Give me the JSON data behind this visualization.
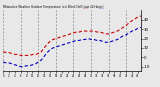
{
  "title": "Milwaukee Weather Outdoor Temperature (vs) Wind Chill (Last 24 Hours)",
  "bg_color": "#e8e8e8",
  "plot_bg": "#e8e8e8",
  "grid_color": "#888888",
  "red_color": "#cc0000",
  "blue_color": "#0000bb",
  "black_color": "#000000",
  "ylim": [
    -15,
    50
  ],
  "ytick_vals": [
    40,
    30,
    20,
    10,
    0,
    -10
  ],
  "ytick_labels": [
    "40",
    "30",
    "20",
    "10",
    "0",
    "-10"
  ],
  "n_points": 48,
  "temp": [
    6,
    5,
    5,
    4,
    3,
    3,
    2,
    2,
    2,
    2,
    3,
    3,
    4,
    6,
    10,
    14,
    17,
    19,
    20,
    21,
    22,
    23,
    24,
    25,
    26,
    27,
    27,
    28,
    28,
    28,
    28,
    28,
    27,
    27,
    26,
    25,
    25,
    26,
    27,
    28,
    30,
    32,
    34,
    37,
    39,
    41,
    43,
    44
  ],
  "windchill": [
    -5,
    -6,
    -6,
    -7,
    -8,
    -9,
    -10,
    -10,
    -9,
    -9,
    -8,
    -7,
    -5,
    -3,
    1,
    5,
    8,
    10,
    11,
    12,
    13,
    14,
    15,
    16,
    17,
    18,
    18,
    19,
    19,
    20,
    19,
    19,
    18,
    18,
    17,
    16,
    16,
    17,
    18,
    19,
    21,
    23,
    24,
    26,
    28,
    29,
    31,
    32
  ],
  "vgrid_x": [
    0,
    6,
    12,
    18,
    24,
    30,
    36,
    42,
    47
  ],
  "xtick_step": 2
}
